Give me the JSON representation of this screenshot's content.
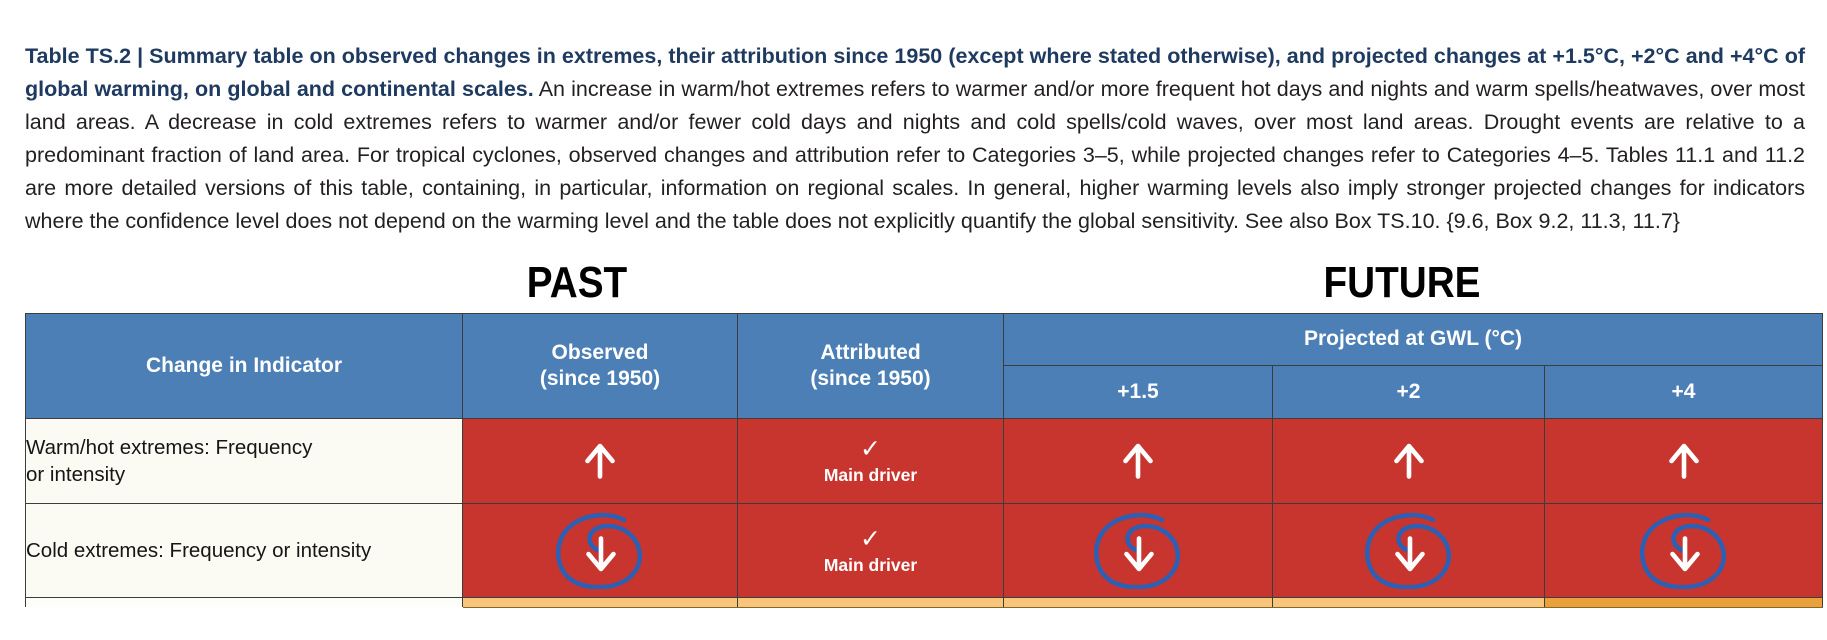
{
  "caption": {
    "title_bold": "Table TS.2 | Summary table on observed changes in extremes, their attribution since 1950 (except where stated otherwise), and projected changes at +1.5°C, +2°C and +4°C of global warming, on global and continental scales.",
    "body_text": " An increase in warm/hot extremes refers to warmer and/or more frequent hot days and nights and warm spells/heatwaves, over most land areas. A decrease in cold extremes refers to warmer and/or fewer cold days and nights and cold spells/cold waves, over most land areas. Drought events are relative to a predominant fraction of land area. For tropical cyclones, observed changes and attribution refer to Categories 3–5, while projected changes refer to Categories 4–5. Tables 11.1 and 11.2 are more detailed versions of this table, containing, in particular, information on regional scales. In general, higher warming levels also imply stronger projected changes for indicators where the confidence level does not depend on the warming level and the table does not explicitly quantify the global sensitivity. See also Box TS.10. {9.6, Box 9.2, 11.3, 11.7}"
  },
  "section_labels": {
    "past": "PAST",
    "future": "FUTURE"
  },
  "table": {
    "headers": {
      "indicator": "Change in Indicator",
      "observed_line1": "Observed",
      "observed_line2": "(since 1950)",
      "attributed_line1": "Attributed",
      "attributed_line2": "(since 1950)",
      "projected_gwl": "Projected at GWL (°C)",
      "gwl_levels": [
        "+1.5",
        "+2",
        "+4"
      ]
    },
    "rows": [
      {
        "indicator_line1": "Warm/hot extremes: Frequency",
        "indicator_line2": "or intensity",
        "observed": {
          "icon": "up-arrow"
        },
        "attributed": {
          "icon": "check-mark",
          "check_char": "✓",
          "label": "Main driver"
        },
        "projected": [
          {
            "icon": "up-arrow"
          },
          {
            "icon": "up-arrow"
          },
          {
            "icon": "up-arrow"
          }
        ],
        "cell_color": "#C8342E"
      },
      {
        "indicator_line1": "Cold extremes: Frequency or intensity",
        "indicator_line2": "",
        "observed": {
          "icon": "down-arrow-circled"
        },
        "attributed": {
          "icon": "check-mark",
          "check_char": "✓",
          "label": "Main driver"
        },
        "projected": [
          {
            "icon": "down-arrow-circled"
          },
          {
            "icon": "down-arrow-circled"
          },
          {
            "icon": "down-arrow-circled"
          }
        ],
        "cell_color": "#C8342E"
      },
      {
        "partial": true,
        "cell_colors": [
          "#FDFDF9",
          "#F6C77B",
          "#F6C77B",
          "#F6C77B",
          "#F6C77B",
          "#E9A23B"
        ]
      }
    ]
  },
  "colors": {
    "caption_navy": "#1F3A60",
    "header_blue": "#4C7FB5",
    "cell_red": "#C8342E",
    "annotation_blue": "#2C60B4",
    "partial_orange_light": "#F6C77B",
    "partial_orange_dark": "#E9A23B",
    "arrow_white": "#FFFFFF"
  }
}
